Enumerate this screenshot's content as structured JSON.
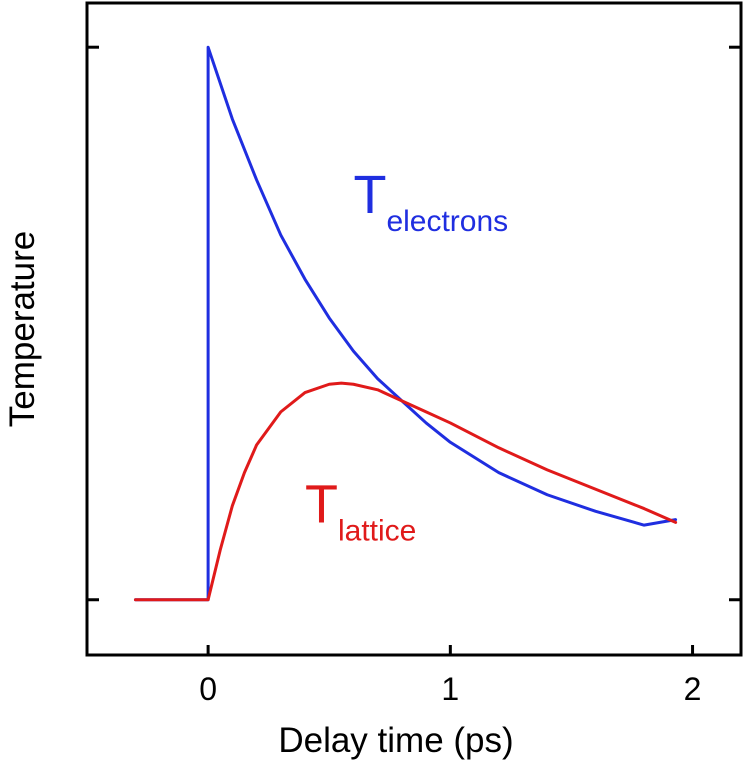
{
  "chart_data": {
    "type": "line",
    "title": "",
    "xlabel": "Delay time (ps)",
    "ylabel": "Temperature",
    "xlim": [
      -0.5,
      2.2
    ],
    "ylim": [
      -0.1,
      1.08
    ],
    "xticks": [
      0,
      1,
      2
    ],
    "xtick_labels": [
      "0",
      "1",
      "2"
    ],
    "yticks": [
      0,
      1
    ],
    "ytick_labels": [
      "",
      ""
    ],
    "grid": false,
    "legend": "none",
    "series": [
      {
        "color": "#1f2ee0",
        "points": [
          [
            -0.3,
            0.0
          ],
          [
            0.0,
            0.0
          ],
          [
            0.0,
            1.0
          ],
          [
            0.1,
            0.87
          ],
          [
            0.2,
            0.76
          ],
          [
            0.3,
            0.66
          ],
          [
            0.4,
            0.58
          ],
          [
            0.5,
            0.51
          ],
          [
            0.6,
            0.45
          ],
          [
            0.7,
            0.4
          ],
          [
            0.8,
            0.36
          ],
          [
            0.9,
            0.32
          ],
          [
            1.0,
            0.285
          ],
          [
            1.2,
            0.23
          ],
          [
            1.4,
            0.19
          ],
          [
            1.6,
            0.16
          ],
          [
            1.8,
            0.135
          ],
          [
            1.93,
            0.145
          ]
        ]
      },
      {
        "color": "#e01a1a",
        "points": [
          [
            -0.3,
            0.0
          ],
          [
            0.0,
            0.0
          ],
          [
            0.05,
            0.09
          ],
          [
            0.1,
            0.17
          ],
          [
            0.15,
            0.23
          ],
          [
            0.2,
            0.28
          ],
          [
            0.3,
            0.34
          ],
          [
            0.4,
            0.375
          ],
          [
            0.5,
            0.39
          ],
          [
            0.55,
            0.392
          ],
          [
            0.6,
            0.39
          ],
          [
            0.7,
            0.38
          ],
          [
            0.8,
            0.36
          ],
          [
            0.9,
            0.34
          ],
          [
            1.0,
            0.32
          ],
          [
            1.2,
            0.275
          ],
          [
            1.4,
            0.235
          ],
          [
            1.6,
            0.2
          ],
          [
            1.8,
            0.165
          ],
          [
            1.93,
            0.14
          ]
        ]
      }
    ],
    "annotations": [
      {
        "main": "T",
        "sub": "electrons",
        "color": "#1f2ee0",
        "x": 0.6,
        "y": 0.7
      },
      {
        "main": "T",
        "sub": "lattice",
        "color": "#e01a1a",
        "x": 0.4,
        "y": 0.14
      }
    ]
  }
}
